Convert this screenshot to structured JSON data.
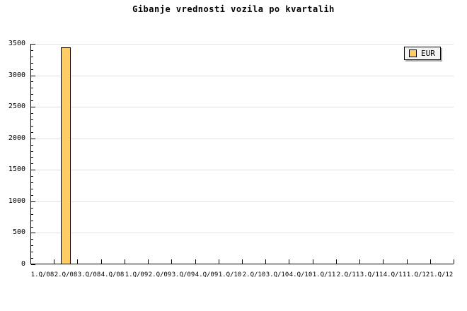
{
  "title": "Gibanje vrednosti vozila po kvartalih",
  "legend": {
    "label": "EUR",
    "position": "top-right"
  },
  "colors": {
    "background": "#FFFFFF",
    "text": "#000000",
    "axis": "#000000",
    "gridline": "#E0E0E0",
    "bar_fill": "#FFCC66",
    "bar_border": "#000000",
    "legend_bg": "#F4F4F4",
    "legend_border": "#000000",
    "legend_shadow": "#AAAAAA"
  },
  "chart_data": {
    "type": "bar",
    "title": "Gibanje vrednosti vozila po kvartalih",
    "categories": [
      "1.Q/08",
      "2.Q/08",
      "3.Q/08",
      "4.Q/08",
      "1.Q/09",
      "2.Q/09",
      "3.Q/09",
      "4.Q/09",
      "1.Q/10",
      "2.Q/10",
      "3.Q/10",
      "4.Q/10",
      "1.Q/11",
      "2.Q/11",
      "3.Q/11",
      "4.Q/11",
      "1.Q/12",
      "1.Q/12"
    ],
    "series": [
      {
        "name": "EUR",
        "values": [
          null,
          3430,
          null,
          null,
          null,
          null,
          null,
          null,
          null,
          null,
          null,
          null,
          null,
          null,
          null,
          null,
          null,
          null
        ]
      }
    ],
    "xlabel": "",
    "ylabel": "",
    "ylim": [
      0,
      3500
    ],
    "y_major_step": 500,
    "y_minor_step": 100,
    "y_tick_labels": [
      "0",
      "500",
      "1000",
      "1500",
      "2000",
      "2500",
      "3000",
      "3500"
    ],
    "grid": "horizontal-major-on",
    "legend_position": "top-right"
  }
}
